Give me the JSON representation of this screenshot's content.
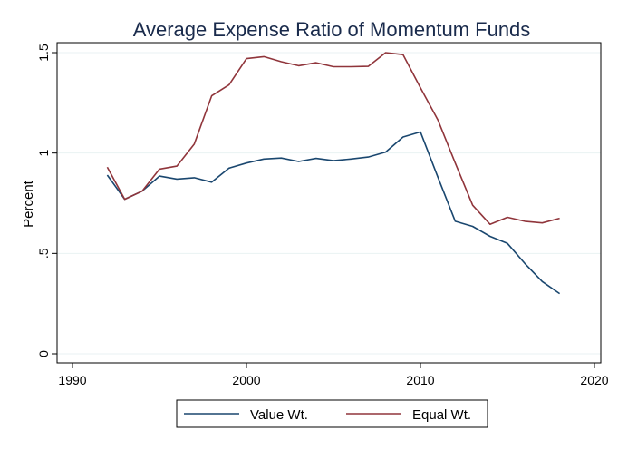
{
  "chart_data": {
    "type": "line",
    "title": "Average Expense Ratio of Momentum Funds",
    "xlabel": "",
    "ylabel": "Percent",
    "xlim": [
      1990,
      2020
    ],
    "ylim": [
      0,
      1.5
    ],
    "xticks": [
      1990,
      2000,
      2010,
      2020
    ],
    "xtick_labels": [
      "1990",
      "2000",
      "2010",
      "2020"
    ],
    "yticks": [
      0,
      0.5,
      1,
      1.5
    ],
    "ytick_labels": [
      "0",
      ".5",
      "1",
      "1.5"
    ],
    "grid": true,
    "legend_position": "bottom",
    "x": [
      1992,
      1993,
      1994,
      1995,
      1996,
      1997,
      1998,
      1999,
      2000,
      2001,
      2002,
      2003,
      2004,
      2005,
      2006,
      2007,
      2008,
      2009,
      2010,
      2011,
      2012,
      2013,
      2014,
      2015,
      2016,
      2017,
      2018
    ],
    "series": [
      {
        "name": "Value Wt.",
        "color": "#1a476f",
        "values": [
          0.89,
          0.77,
          0.81,
          0.885,
          0.87,
          0.877,
          0.855,
          0.925,
          0.95,
          0.97,
          0.975,
          0.958,
          0.973,
          0.962,
          0.97,
          0.98,
          1.005,
          1.08,
          1.105,
          0.88,
          0.66,
          0.635,
          0.585,
          0.55,
          0.45,
          0.36,
          0.3
        ]
      },
      {
        "name": "Equal Wt.",
        "color": "#90353b",
        "values": [
          0.93,
          0.77,
          0.81,
          0.92,
          0.935,
          1.045,
          1.285,
          1.34,
          1.47,
          1.48,
          1.455,
          1.435,
          1.45,
          1.43,
          1.43,
          1.432,
          1.5,
          1.49,
          1.325,
          1.165,
          0.95,
          0.74,
          0.645,
          0.68,
          0.66,
          0.652,
          0.675
        ]
      }
    ]
  }
}
